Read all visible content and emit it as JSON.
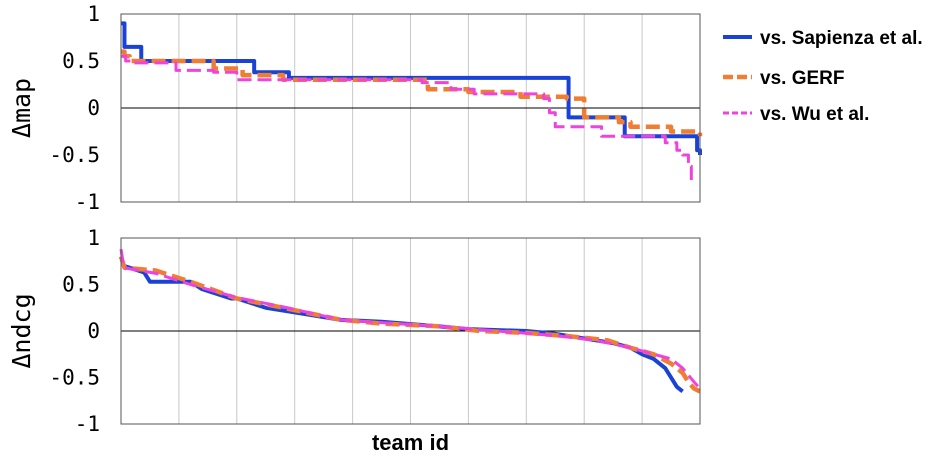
{
  "chart_data": [
    {
      "type": "line",
      "step": true,
      "ylabel": "Δmap",
      "xlabel": "",
      "ylim": [
        -1,
        1
      ],
      "xlim": [
        0,
        100
      ],
      "yticks": [
        "1",
        "0.5",
        "0",
        "-0.5",
        "-1"
      ],
      "grid": true,
      "legend_position": "right",
      "series": [
        {
          "name": "vs. Sapienza et al.",
          "color": "#1a43d6",
          "dash": "solid",
          "x": [
            0,
            0.5,
            0.6,
            2.5,
            3.5,
            4,
            22,
            23,
            28,
            29,
            77,
            77.3,
            86,
            87,
            99,
            99.5,
            100
          ],
          "y": [
            0.9,
            0.9,
            0.65,
            0.65,
            0.5,
            0.5,
            0.5,
            0.38,
            0.38,
            0.32,
            0.32,
            -0.1,
            -0.1,
            -0.3,
            -0.3,
            -0.45,
            -0.5
          ]
        },
        {
          "name": "vs. GERF",
          "color": "#ef7d34",
          "dash": "dashed",
          "x": [
            0,
            0.6,
            1.5,
            10,
            16,
            21,
            28,
            50,
            53,
            60,
            69,
            77,
            80,
            82,
            86,
            88,
            95,
            100
          ],
          "y": [
            0.6,
            0.55,
            0.5,
            0.5,
            0.42,
            0.35,
            0.3,
            0.3,
            0.2,
            0.17,
            0.12,
            0.1,
            -0.1,
            -0.1,
            -0.15,
            -0.2,
            -0.25,
            -0.3
          ]
        },
        {
          "name": "vs. Wu et al.",
          "color": "#ee44dd",
          "dash": "dashed",
          "x": [
            0,
            0.8,
            2,
            9.5,
            16,
            20,
            36,
            52,
            57,
            61,
            73,
            74,
            75,
            83,
            86,
            92,
            94,
            96,
            97,
            98,
            98.5
          ],
          "y": [
            0.55,
            0.5,
            0.48,
            0.4,
            0.38,
            0.3,
            0.3,
            0.27,
            0.2,
            0.15,
            0.1,
            -0.05,
            -0.2,
            -0.3,
            -0.3,
            -0.3,
            -0.37,
            -0.45,
            -0.5,
            -0.62,
            -0.77
          ]
        }
      ]
    },
    {
      "type": "line",
      "step": false,
      "ylabel": "Δndcg",
      "xlabel": "team id",
      "ylim": [
        -1,
        1
      ],
      "xlim": [
        0,
        100
      ],
      "yticks": [
        "1",
        "0.5",
        "0",
        "-0.5",
        "-1"
      ],
      "grid": true,
      "series": [
        {
          "name": "vs. Sapienza et al.",
          "color": "#1a43d6",
          "dash": "solid",
          "x": [
            0,
            0.5,
            4,
            5,
            12,
            14,
            19,
            20,
            25,
            30,
            38,
            45,
            55,
            60,
            70,
            75,
            80,
            85,
            88,
            90,
            92,
            94,
            95,
            96,
            97
          ],
          "y": [
            0.8,
            0.7,
            0.63,
            0.53,
            0.53,
            0.45,
            0.35,
            0.35,
            0.25,
            0.2,
            0.12,
            0.1,
            0.05,
            0.02,
            0.0,
            -0.03,
            -0.08,
            -0.13,
            -0.18,
            -0.25,
            -0.3,
            -0.4,
            -0.5,
            -0.6,
            -0.65
          ]
        },
        {
          "name": "vs. GERF",
          "color": "#ef7d34",
          "dash": "dashed",
          "x": [
            0,
            0.6,
            6,
            12,
            20,
            28,
            38,
            45,
            55,
            62,
            70,
            78,
            84,
            88,
            92,
            95,
            97,
            98,
            99,
            100
          ],
          "y": [
            0.8,
            0.68,
            0.65,
            0.53,
            0.35,
            0.25,
            0.12,
            0.08,
            0.05,
            0.0,
            -0.02,
            -0.06,
            -0.1,
            -0.18,
            -0.25,
            -0.35,
            -0.45,
            -0.55,
            -0.62,
            -0.65
          ]
        },
        {
          "name": "vs. Wu et al.",
          "color": "#ee44dd",
          "dash": "dashed",
          "x": [
            0,
            0.5,
            6,
            12,
            20,
            28,
            38,
            45,
            55,
            65,
            75,
            82,
            88,
            92,
            95,
            97,
            99,
            100
          ],
          "y": [
            0.88,
            0.68,
            0.62,
            0.5,
            0.36,
            0.26,
            0.12,
            0.09,
            0.05,
            0.0,
            -0.05,
            -0.1,
            -0.18,
            -0.25,
            -0.3,
            -0.4,
            -0.55,
            -0.62
          ]
        }
      ]
    }
  ]
}
